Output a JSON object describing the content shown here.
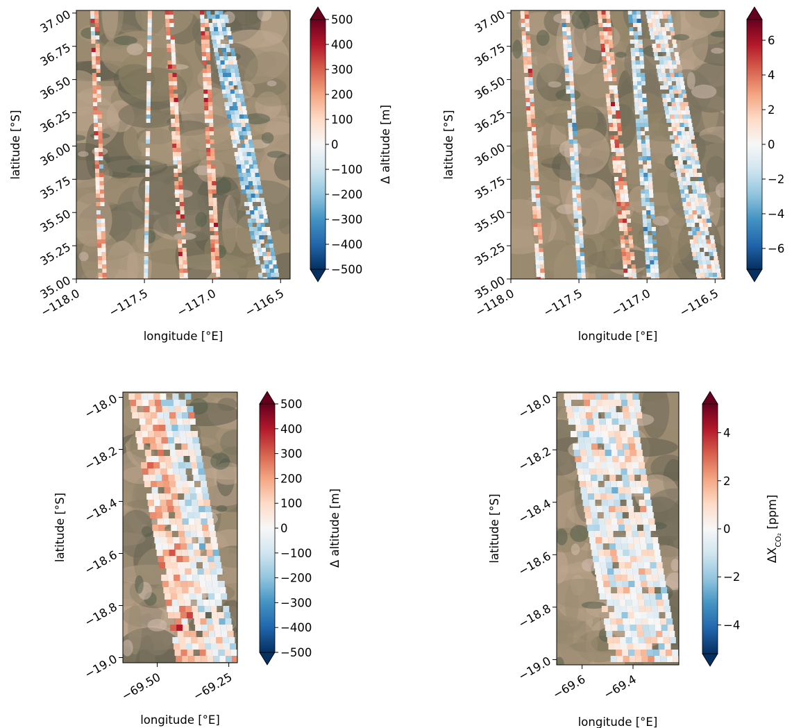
{
  "colormap": {
    "name": "RdBu_r",
    "stops": [
      "#053061",
      "#2166ac",
      "#4393c3",
      "#92c5de",
      "#d1e5f0",
      "#f7f7f7",
      "#fddbc7",
      "#f4a582",
      "#d6604d",
      "#b2182b",
      "#67001f"
    ]
  },
  "background_colors": [
    "#8f8366",
    "#a8957a",
    "#6f6a58",
    "#b9a38a",
    "#7b7560",
    "#c0a890",
    "#9a8c73",
    "#5f5d4c"
  ],
  "chart_data": [
    {
      "id": "panel-a",
      "type": "heatmap",
      "xlabel": "longitude [°E]",
      "ylabel": "latitude [°S]",
      "xlim": [
        -118.0,
        -116.43
      ],
      "ylim": [
        35.0,
        37.02
      ],
      "xticks": [
        -118.0,
        -117.5,
        -117.0,
        -116.5
      ],
      "xtick_labels": [
        "−118.0",
        "−117.5",
        "−117.0",
        "−116.5"
      ],
      "yticks": [
        35.0,
        35.25,
        35.5,
        35.75,
        36.0,
        36.25,
        36.5,
        36.75,
        37.0
      ],
      "ytick_labels": [
        "35.00",
        "35.25",
        "35.50",
        "35.75",
        "36.00",
        "36.25",
        "36.50",
        "36.75",
        "37.00"
      ],
      "colorbar": {
        "label": "Δ altitude [m]",
        "range": [
          -500,
          500
        ],
        "ticks": [
          500,
          400,
          300,
          200,
          100,
          0,
          -100,
          -200,
          -300,
          -400,
          -500
        ],
        "tick_labels": [
          "500",
          "400",
          "300",
          "200",
          "100",
          "0",
          "−100",
          "−200",
          "−300",
          "−400",
          "−500"
        ],
        "extend": "both"
      },
      "swaths": [
        {
          "x_top": -117.88,
          "x_bottom": -117.82,
          "width": 0.035,
          "mean": 0.25
        },
        {
          "x_top": -117.46,
          "x_bottom": -117.49,
          "width": 0.03,
          "mean": 0.0
        },
        {
          "x_top": -117.33,
          "x_bottom": -117.22,
          "width": 0.04,
          "mean": 0.3
        },
        {
          "x_top": -117.07,
          "x_bottom": -116.98,
          "width": 0.045,
          "mean": 0.3
        },
        {
          "x_top": -116.97,
          "x_bottom": -116.58,
          "width": 0.15,
          "mean": -0.25
        }
      ]
    },
    {
      "id": "panel-b",
      "type": "heatmap",
      "xlabel": "longitude [°E]",
      "ylabel": "latitude [°S]",
      "xlim": [
        -118.0,
        -116.43
      ],
      "ylim": [
        35.0,
        37.02
      ],
      "xticks": [
        -118.0,
        -117.5,
        -117.0,
        -116.5
      ],
      "xtick_labels": [
        "−118.0",
        "−117.5",
        "−117.0",
        "−116.5"
      ],
      "yticks": [
        35.0,
        35.25,
        35.5,
        35.75,
        36.0,
        36.25,
        36.5,
        36.75,
        37.0
      ],
      "ytick_labels": [
        "35.00",
        "35.25",
        "35.50",
        "35.75",
        "36.00",
        "36.25",
        "36.50",
        "36.75",
        "37.00"
      ],
      "colorbar": {
        "label_main": "ΔX",
        "label_sub": "CO₂",
        "label_unit": " [ppm]",
        "range": [
          -7.2,
          7.2
        ],
        "ticks": [
          6,
          4,
          2,
          0,
          -2,
          -4,
          -6
        ],
        "tick_labels": [
          "6",
          "4",
          "2",
          "0",
          "−2",
          "−4",
          "−6"
        ],
        "extend": "both"
      },
      "swaths": [
        {
          "x_top": -117.9,
          "x_bottom": -117.78,
          "width": 0.06,
          "mean": 0.2
        },
        {
          "x_top": -117.6,
          "x_bottom": -117.48,
          "width": 0.06,
          "mean": -0.1
        },
        {
          "x_top": -117.32,
          "x_bottom": -117.12,
          "width": 0.09,
          "mean": 0.3
        },
        {
          "x_top": -117.1,
          "x_bottom": -116.96,
          "width": 0.08,
          "mean": -0.25
        },
        {
          "x_top": -116.93,
          "x_bottom": -116.55,
          "width": 0.16,
          "mean": -0.05
        }
      ]
    },
    {
      "id": "panel-c",
      "type": "heatmap",
      "xlabel": "longitude [°E]",
      "ylabel": "latitude [°S]",
      "xlim": [
        -69.62,
        -69.22
      ],
      "ylim": [
        -19.02,
        -17.98
      ],
      "xticks": [
        -69.5,
        -69.25
      ],
      "xtick_labels": [
        "−69.50",
        "−69.25"
      ],
      "yticks": [
        -18.0,
        -18.2,
        -18.4,
        -18.6,
        -18.8,
        -19.0
      ],
      "ytick_labels": [
        "−18.0",
        "−18.2",
        "−18.4",
        "−18.6",
        "−18.8",
        "−19.0"
      ],
      "colorbar": {
        "label": "Δ altitude [m]",
        "range": [
          -500,
          500
        ],
        "ticks": [
          500,
          400,
          300,
          200,
          100,
          0,
          -100,
          -200,
          -300,
          -400,
          -500
        ],
        "tick_labels": [
          "500",
          "400",
          "300",
          "200",
          "100",
          "0",
          "−100",
          "−200",
          "−300",
          "−400",
          "−500"
        ],
        "extend": "both"
      }
    },
    {
      "id": "panel-d",
      "type": "heatmap",
      "xlabel": "longitude [°E]",
      "ylabel": "latitude [°S]",
      "xlim": [
        -69.7,
        -69.22
      ],
      "ylim": [
        -19.02,
        -17.98
      ],
      "xticks": [
        -69.6,
        -69.4
      ],
      "xtick_labels": [
        "−69.6",
        "−69.4"
      ],
      "yticks": [
        -18.0,
        -18.2,
        -18.4,
        -18.6,
        -18.8,
        -19.0
      ],
      "ytick_labels": [
        "−18.0",
        "−18.2",
        "−18.4",
        "−18.6",
        "−18.8",
        "−19.0"
      ],
      "colorbar": {
        "label_main": "ΔX",
        "label_sub": "CO₂",
        "label_unit": " [ppm]",
        "range": [
          -5.2,
          5.2
        ],
        "ticks": [
          4,
          2,
          0,
          -2,
          -4
        ],
        "tick_labels": [
          "4",
          "2",
          "0",
          "−2",
          "−4"
        ],
        "extend": "both"
      }
    }
  ]
}
